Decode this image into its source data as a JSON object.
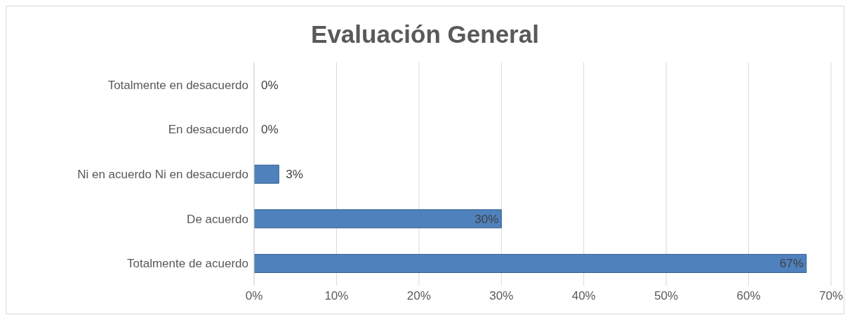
{
  "chart_data": {
    "type": "bar",
    "orientation": "horizontal",
    "title": "Evaluación General",
    "categories": [
      "Totalmente en desacuerdo",
      "En desacuerdo",
      "Ni en acuerdo Ni en desacuerdo",
      "De acuerdo",
      "Totalmente de acuerdo"
    ],
    "values": [
      0,
      0,
      3,
      30,
      67
    ],
    "color": "#4f81bd",
    "value_labels": [
      "0%",
      "0%",
      "3%",
      "30%",
      "67%"
    ],
    "xlim": [
      0,
      70
    ],
    "xticks": [
      {
        "value": 0,
        "label": "0%"
      },
      {
        "value": 10,
        "label": "10%"
      },
      {
        "value": 20,
        "label": "20%"
      },
      {
        "value": 30,
        "label": "30%"
      },
      {
        "value": 40,
        "label": "40%"
      },
      {
        "value": 50,
        "label": "50%"
      },
      {
        "value": 60,
        "label": "60%"
      },
      {
        "value": 70,
        "label": "70%"
      }
    ],
    "grid": "x"
  }
}
